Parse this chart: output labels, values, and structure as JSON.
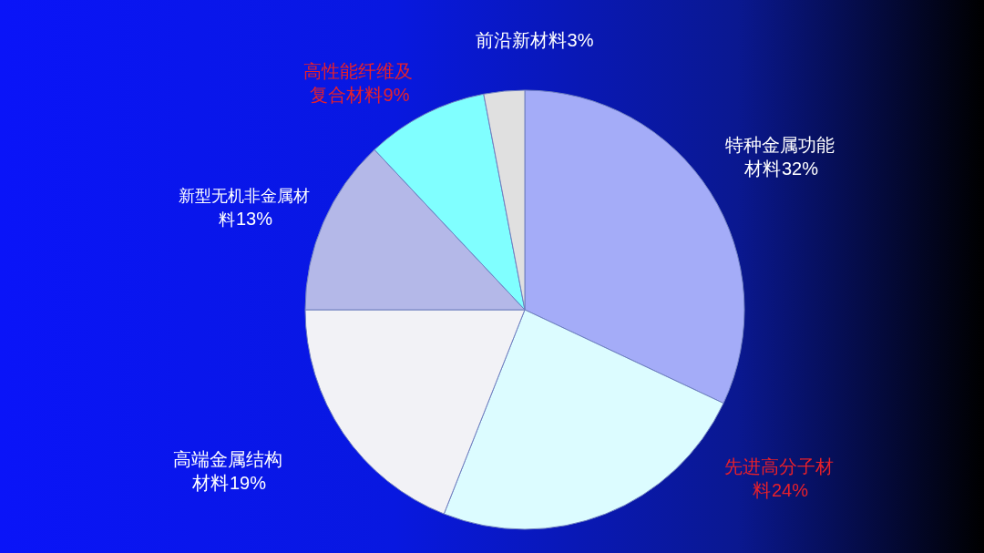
{
  "chart_data": {
    "type": "pie",
    "categories": [
      "特种金属功能材料",
      "先进高分子材料",
      "高端金属结构材料",
      "新型无机非金属材料",
      "高性能纤维及复合材料",
      "前沿新材料"
    ],
    "values": [
      32,
      24,
      19,
      13,
      9,
      3
    ],
    "colors": [
      "#a4acf8",
      "#dcfcff",
      "#f2f2f6",
      "#b4b8e8",
      "#80ffff",
      "#e0e0e0"
    ],
    "value_labels": [
      "32%",
      "24%",
      "19%",
      "13%",
      "9%",
      "3%"
    ],
    "legend": false
  }
}
